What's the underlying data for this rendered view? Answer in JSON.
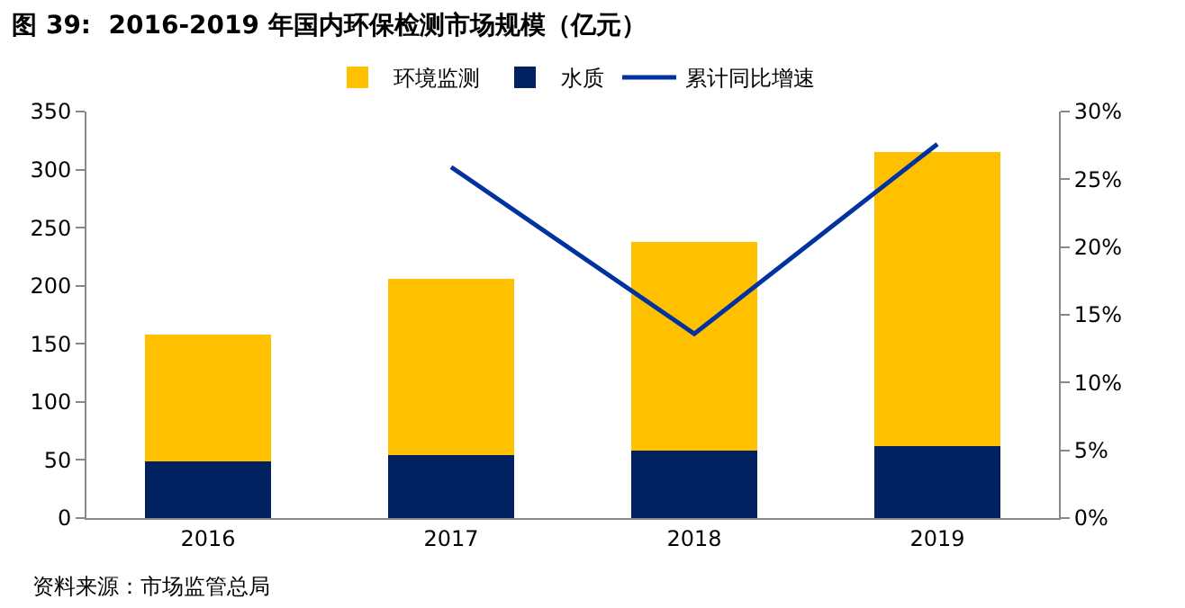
{
  "chart_data": {
    "type": "bar",
    "title": "图 39:  2016-2019 年国内环保检测市场规模（亿元）",
    "categories": [
      "2016",
      "2017",
      "2018",
      "2019"
    ],
    "stacked": true,
    "series": [
      {
        "name": "水质",
        "color": "#002060",
        "values": [
          49,
          54,
          58,
          62
        ]
      },
      {
        "name": "环境监测",
        "color": "#ffc000",
        "values": [
          109,
          152,
          180,
          253
        ]
      },
      {
        "name": "累计同比增速",
        "color": "#0033a0",
        "type": "line",
        "axis": "y2",
        "values": [
          null,
          25.9,
          13.6,
          27.6
        ]
      }
    ],
    "ylim": [
      0,
      350
    ],
    "yticks": [
      0,
      50,
      100,
      150,
      200,
      250,
      300,
      350
    ],
    "y2lim": [
      0,
      30
    ],
    "y2ticks": [
      {
        "value": 0,
        "label": "0%"
      },
      {
        "value": 5,
        "label": "5%"
      },
      {
        "value": 10,
        "label": "10%"
      },
      {
        "value": 15,
        "label": "15%"
      },
      {
        "value": 20,
        "label": "20%"
      },
      {
        "value": 25,
        "label": "25%"
      },
      {
        "value": 30,
        "label": "30%"
      }
    ],
    "legend": "top",
    "marker": "none",
    "annotations": [
      "资料来源：市场监管总局"
    ]
  }
}
